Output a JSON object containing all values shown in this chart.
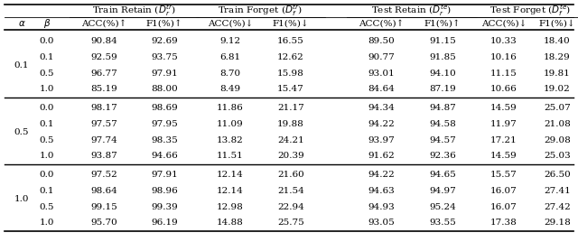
{
  "group_labels": [
    "Train Retain ($D_r^{tr}$)",
    "Train Forget ($D_f^{tr}$)",
    "Test Retain ($D_r^{te}$)",
    "Test Forget ($D_f^{te}$)"
  ],
  "col2_labels": [
    "ACC(%)↑",
    "F1(%)↑",
    "ACC(%)↓",
    "F1(%)↓",
    "ACC(%)↑",
    "F1(%)↑",
    "ACC(%)↓",
    "F1(%)↓"
  ],
  "alpha_values": [
    "0.1",
    "0.5",
    "1.0"
  ],
  "beta_values": [
    "0.0",
    "0.1",
    "0.5",
    "1.0",
    "0.0",
    "0.1",
    "0.5",
    "1.0",
    "0.0",
    "0.1",
    "0.5",
    "1.0"
  ],
  "data": [
    [
      "90.84",
      "92.69",
      "9.12",
      "16.55",
      "89.50",
      "91.15",
      "10.33",
      "18.40"
    ],
    [
      "92.59",
      "93.75",
      "6.81",
      "12.62",
      "90.77",
      "91.85",
      "10.16",
      "18.29"
    ],
    [
      "96.77",
      "97.91",
      "8.70",
      "15.98",
      "93.01",
      "94.10",
      "11.15",
      "19.81"
    ],
    [
      "85.19",
      "88.00",
      "8.49",
      "15.47",
      "84.64",
      "87.19",
      "10.66",
      "19.02"
    ],
    [
      "98.17",
      "98.69",
      "11.86",
      "21.17",
      "94.34",
      "94.87",
      "14.59",
      "25.07"
    ],
    [
      "97.57",
      "97.95",
      "11.09",
      "19.88",
      "94.22",
      "94.58",
      "11.97",
      "21.08"
    ],
    [
      "97.74",
      "98.35",
      "13.82",
      "24.21",
      "93.97",
      "94.57",
      "17.21",
      "29.08"
    ],
    [
      "93.87",
      "94.66",
      "11.51",
      "20.39",
      "91.62",
      "92.36",
      "14.59",
      "25.03"
    ],
    [
      "97.52",
      "97.91",
      "12.14",
      "21.60",
      "94.22",
      "94.65",
      "15.57",
      "26.50"
    ],
    [
      "98.64",
      "98.96",
      "12.14",
      "21.54",
      "94.63",
      "94.97",
      "16.07",
      "27.41"
    ],
    [
      "99.15",
      "99.39",
      "12.98",
      "22.94",
      "94.93",
      "95.24",
      "16.07",
      "27.42"
    ],
    [
      "95.70",
      "96.19",
      "14.88",
      "25.75",
      "93.05",
      "93.55",
      "17.38",
      "29.18"
    ]
  ],
  "fontsize": 7.5,
  "background_color": "#ffffff"
}
